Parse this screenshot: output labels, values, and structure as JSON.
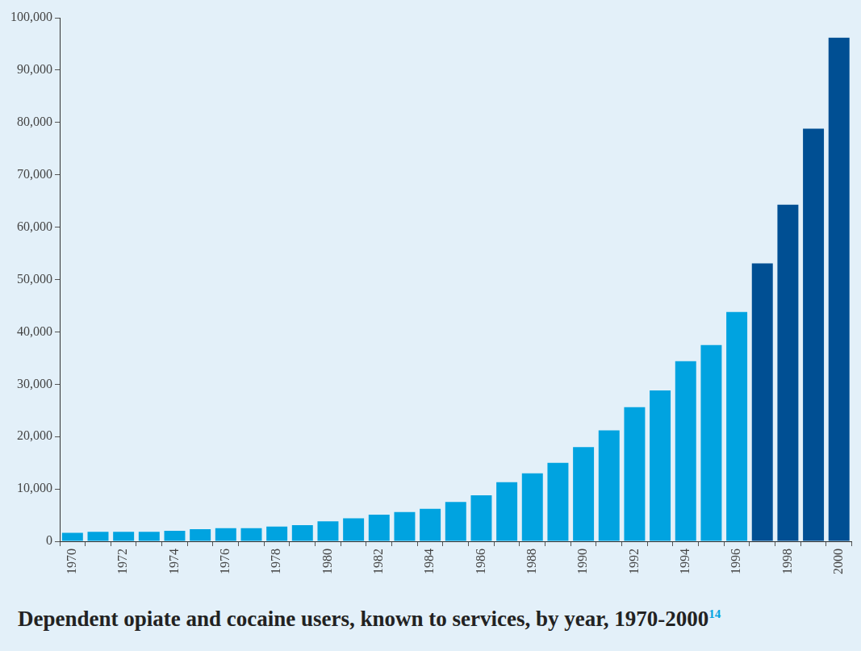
{
  "chart_data": {
    "type": "bar",
    "title": "Dependent opiate and cocaine users, known to services, by year, 1970-2000",
    "title_note": "14",
    "categories": [
      "1970",
      null,
      "1972",
      null,
      "1974",
      null,
      "1976",
      null,
      "1978",
      null,
      "1980",
      null,
      "1982",
      null,
      "1984",
      null,
      "1986",
      null,
      "1988",
      null,
      "1990",
      null,
      "1992",
      null,
      "1994",
      null,
      "1996",
      null,
      "1998",
      null,
      "2000"
    ],
    "values": [
      1600,
      1800,
      1800,
      1800,
      2000,
      2300,
      2500,
      2500,
      2800,
      3100,
      3800,
      4400,
      5100,
      5600,
      6200,
      7500,
      8800,
      11300,
      13000,
      15000,
      18000,
      21200,
      25600,
      28800,
      34400,
      37500,
      43800,
      53100,
      64300,
      78800,
      96200
    ],
    "colors": [
      "#00a3e0",
      "#00a3e0",
      "#00a3e0",
      "#00a3e0",
      "#00a3e0",
      "#00a3e0",
      "#00a3e0",
      "#00a3e0",
      "#00a3e0",
      "#00a3e0",
      "#00a3e0",
      "#00a3e0",
      "#00a3e0",
      "#00a3e0",
      "#00a3e0",
      "#00a3e0",
      "#00a3e0",
      "#00a3e0",
      "#00a3e0",
      "#00a3e0",
      "#00a3e0",
      "#00a3e0",
      "#00a3e0",
      "#00a3e0",
      "#00a3e0",
      "#00a3e0",
      "#00a3e0",
      "#004f93",
      "#004f93",
      "#004f93",
      "#004f93"
    ],
    "ylim": [
      0,
      100000
    ],
    "yticks": [
      0,
      {
        "value": 10000,
        "label": "10,000"
      },
      {
        "value": 20000,
        "label": "20,000"
      },
      {
        "value": 30000,
        "label": "30,000"
      },
      {
        "value": 40000,
        "label": "40,000"
      },
      {
        "value": 50000,
        "label": "50,000"
      },
      {
        "value": 60000,
        "label": "60,000"
      },
      {
        "value": 70000,
        "label": "70,000"
      },
      {
        "value": 80000,
        "label": "80,000"
      },
      {
        "value": 90000,
        "label": "90,000"
      },
      {
        "value": 100000,
        "label": "100,000"
      }
    ],
    "grid": false
  }
}
